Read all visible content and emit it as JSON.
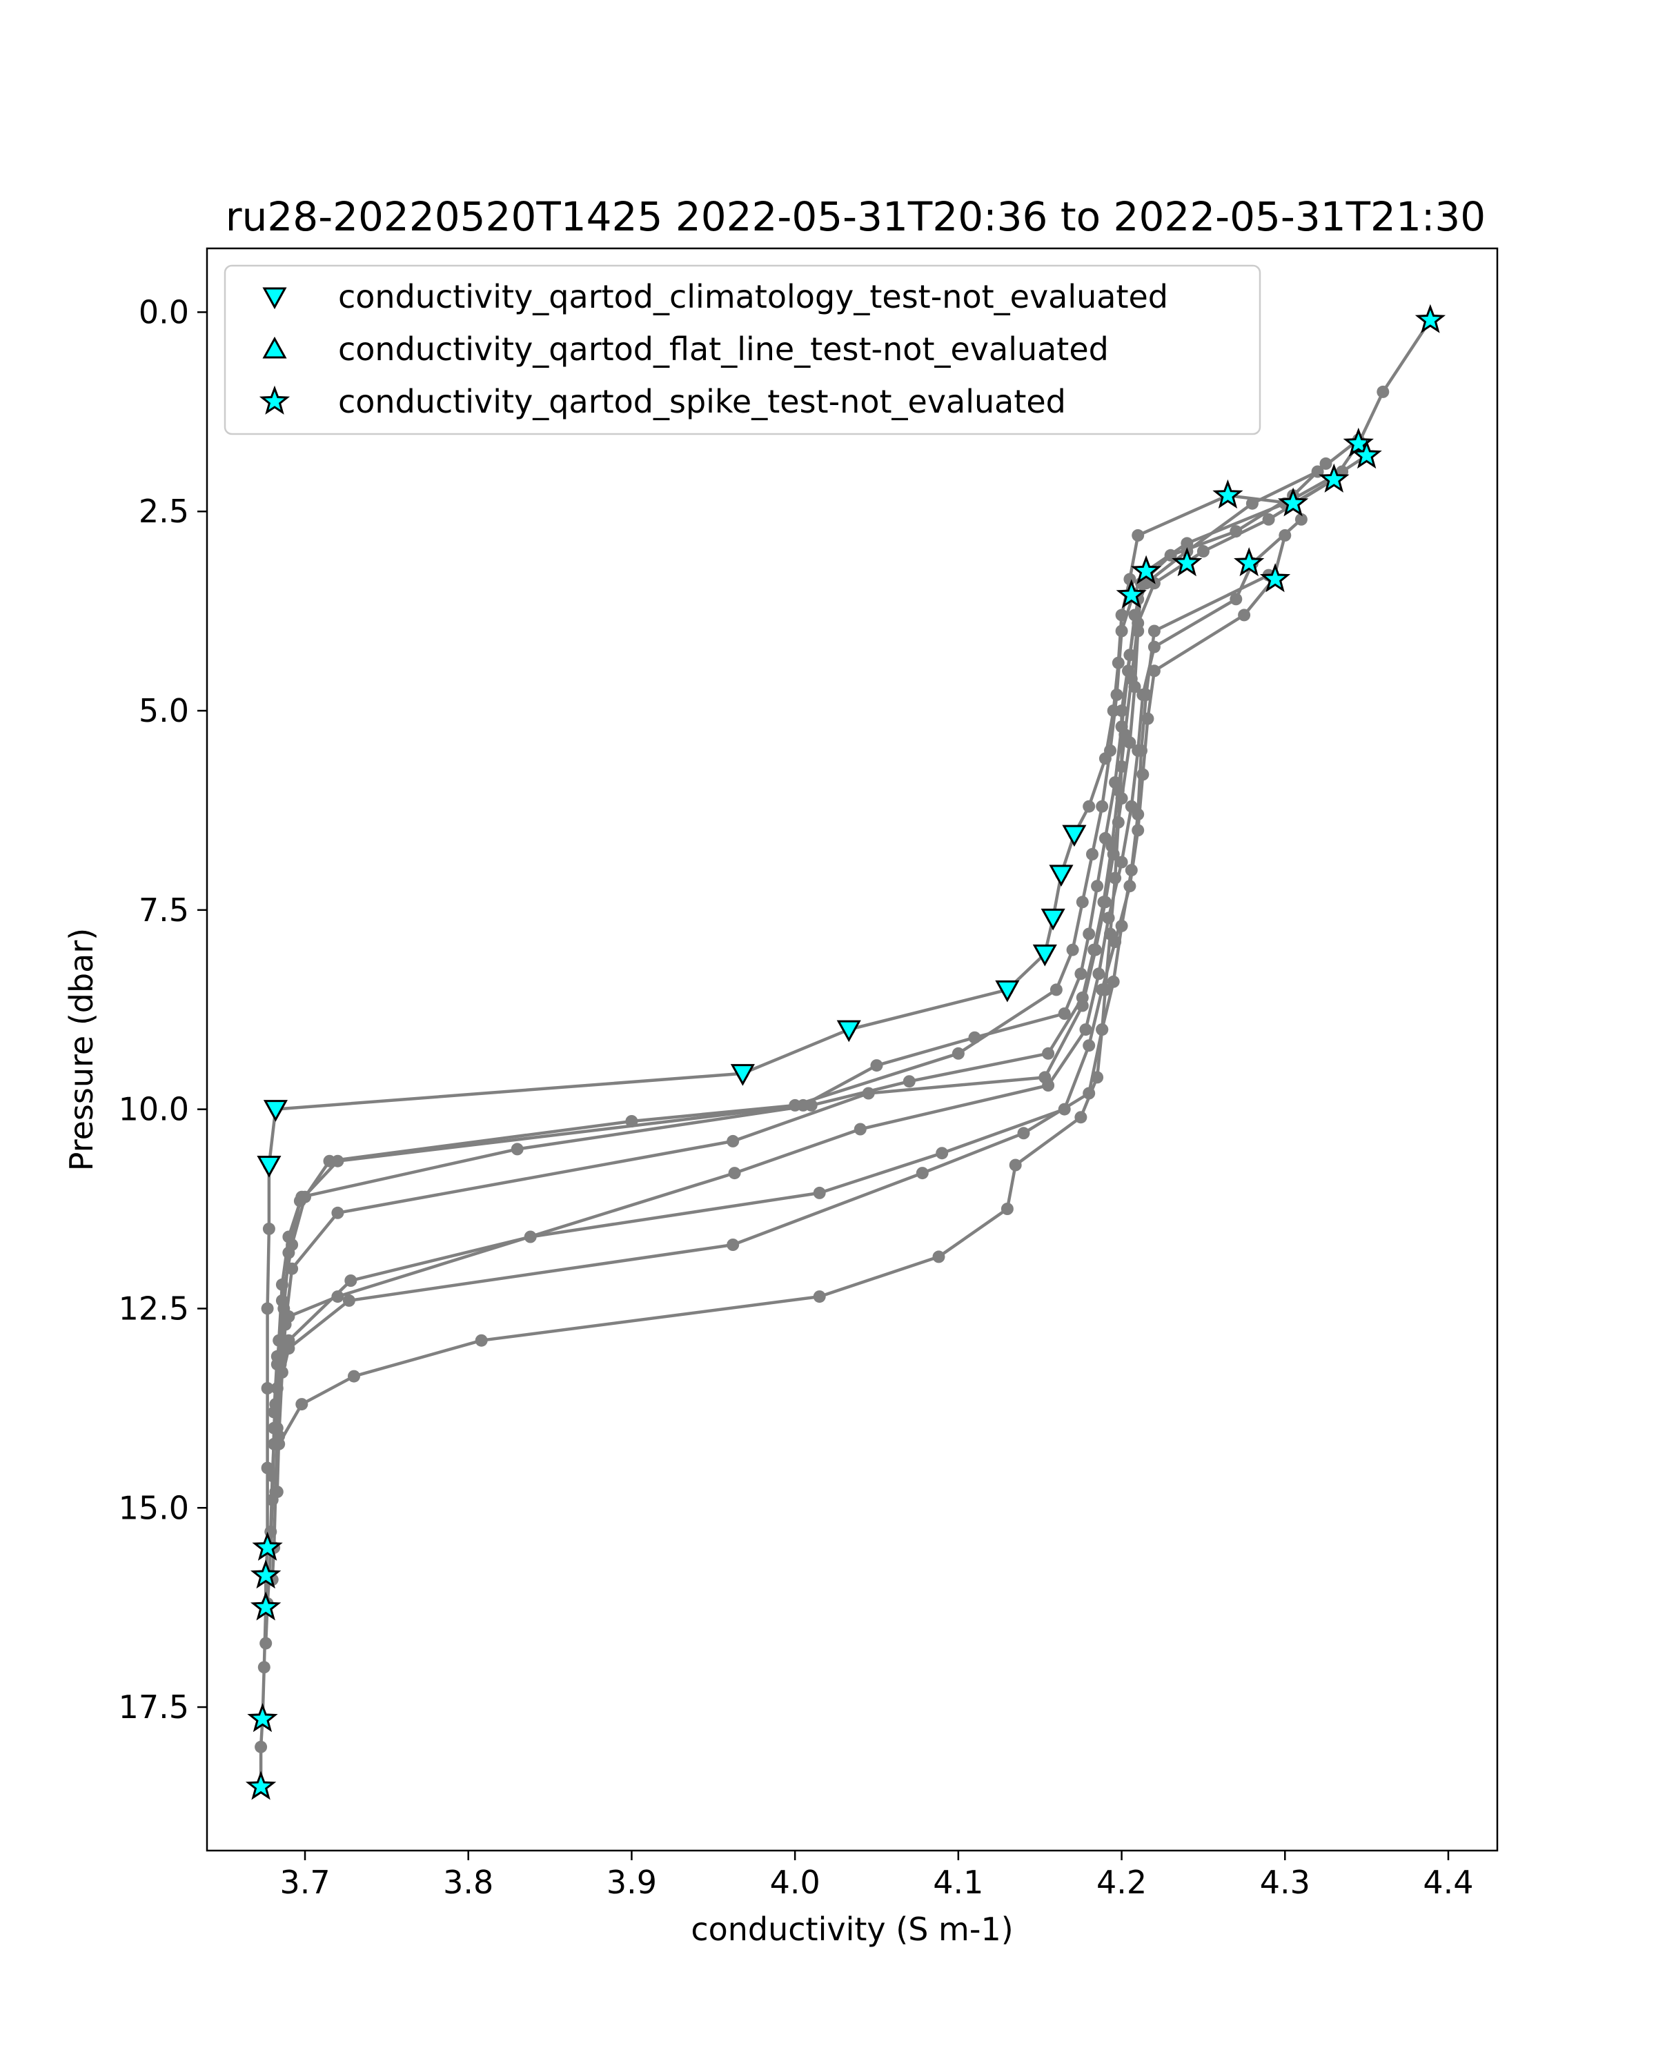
{
  "chart_data": {
    "type": "scatter",
    "title": "ru28-20220520T1425 2022-05-31T20:36 to 2022-05-31T21:30",
    "xlabel": "conductivity (S m-1)",
    "ylabel": "Pressure (dbar)",
    "xlim": [
      3.64,
      4.43
    ],
    "ylim": [
      19.3,
      -0.8
    ],
    "y_inverted": true,
    "x_ticks": [
      3.7,
      3.8,
      3.9,
      4.0,
      4.1,
      4.2,
      4.3,
      4.4
    ],
    "x_tick_labels": [
      "3.7",
      "3.8",
      "3.9",
      "4.0",
      "4.1",
      "4.2",
      "4.3",
      "4.4"
    ],
    "y_ticks": [
      0.0,
      2.5,
      5.0,
      7.5,
      10.0,
      12.5,
      15.0,
      17.5
    ],
    "y_tick_labels": [
      "0.0",
      "2.5",
      "5.0",
      "7.5",
      "10.0",
      "12.5",
      "15.0",
      "17.5"
    ],
    "grid": false,
    "legend_position": "top-left",
    "colors": {
      "profile": "#808080",
      "flag_fill": "#00ffff",
      "flag_edge": "#000000"
    },
    "legend": [
      {
        "label": "conductivity_qartod_climatology_test-not_evaluated",
        "marker": "triangle-down"
      },
      {
        "label": "conductivity_qartod_flat_line_test-not_evaluated",
        "marker": "triangle-up"
      },
      {
        "label": "conductivity_qartod_spike_test-not_evaluated",
        "marker": "star"
      }
    ],
    "profiles": [
      {
        "points": [
          [
            4.389,
            0.1
          ],
          [
            4.36,
            1.0
          ],
          [
            4.345,
            1.65
          ],
          [
            4.33,
            2.1
          ],
          [
            4.305,
            2.4
          ],
          [
            4.265,
            2.3
          ],
          [
            4.21,
            2.8
          ],
          [
            4.205,
            3.35
          ],
          [
            4.2,
            3.8
          ],
          [
            4.198,
            4.4
          ],
          [
            4.195,
            5.0
          ],
          [
            4.19,
            5.6
          ],
          [
            4.18,
            6.2
          ],
          [
            4.171,
            6.55
          ],
          [
            4.163,
            7.05
          ],
          [
            4.158,
            7.6
          ],
          [
            4.153,
            8.05
          ],
          [
            4.13,
            8.5
          ],
          [
            4.033,
            9.0
          ],
          [
            3.968,
            9.55
          ],
          [
            3.682,
            10.0
          ],
          [
            3.678,
            10.7
          ],
          [
            3.678,
            11.5
          ],
          [
            3.677,
            12.5
          ],
          [
            3.677,
            13.5
          ],
          [
            3.677,
            14.5
          ],
          [
            3.677,
            15.5
          ],
          [
            3.676,
            15.85
          ],
          [
            3.676,
            16.25
          ],
          [
            3.675,
            17.0
          ],
          [
            3.674,
            17.65
          ],
          [
            3.673,
            18.0
          ],
          [
            3.673,
            18.5
          ]
        ]
      },
      {
        "points": [
          [
            4.35,
            1.8
          ],
          [
            4.335,
            2.0
          ],
          [
            4.3,
            2.4
          ],
          [
            4.24,
            2.9
          ],
          [
            4.215,
            3.25
          ],
          [
            4.207,
            3.55
          ],
          [
            4.2,
            4.0
          ],
          [
            4.197,
            4.8
          ],
          [
            4.193,
            5.5
          ],
          [
            4.188,
            6.2
          ],
          [
            4.182,
            6.8
          ],
          [
            4.176,
            7.4
          ],
          [
            4.17,
            8.0
          ],
          [
            4.16,
            8.5
          ],
          [
            4.1,
            9.3
          ],
          [
            4.0,
            9.95
          ],
          [
            3.9,
            10.15
          ],
          [
            3.715,
            10.65
          ],
          [
            3.7,
            11.1
          ],
          [
            3.692,
            11.7
          ],
          [
            3.686,
            12.4
          ],
          [
            3.683,
            13.2
          ],
          [
            3.681,
            14.0
          ],
          [
            3.68,
            14.9
          ],
          [
            3.679,
            15.5
          ],
          [
            3.678,
            15.9
          ],
          [
            3.677,
            16.2
          ],
          [
            3.676,
            16.7
          ]
        ]
      },
      {
        "points": [
          [
            4.345,
            1.6
          ],
          [
            4.32,
            2.0
          ],
          [
            4.28,
            2.4
          ],
          [
            4.24,
            3.0
          ],
          [
            4.215,
            3.4
          ],
          [
            4.208,
            3.8
          ],
          [
            4.204,
            4.5
          ],
          [
            4.2,
            5.2
          ],
          [
            4.196,
            5.9
          ],
          [
            4.19,
            6.6
          ],
          [
            4.185,
            7.2
          ],
          [
            4.18,
            7.8
          ],
          [
            4.175,
            8.3
          ],
          [
            4.165,
            8.8
          ],
          [
            4.11,
            9.1
          ],
          [
            4.05,
            9.45
          ],
          [
            4.005,
            9.95
          ],
          [
            3.72,
            10.65
          ],
          [
            3.697,
            11.15
          ],
          [
            3.69,
            11.8
          ],
          [
            3.687,
            12.5
          ],
          [
            3.685,
            13.2
          ],
          [
            3.683,
            14.0
          ],
          [
            3.682,
            14.8
          ],
          [
            3.681,
            15.5
          ],
          [
            3.68,
            15.9
          ]
        ]
      },
      {
        "points": [
          [
            4.33,
            2.1
          ],
          [
            4.29,
            2.6
          ],
          [
            4.25,
            3.0
          ],
          [
            4.22,
            3.4
          ],
          [
            4.21,
            3.9
          ],
          [
            4.206,
            4.6
          ],
          [
            4.202,
            5.3
          ],
          [
            4.198,
            6.0
          ],
          [
            4.194,
            6.7
          ],
          [
            4.189,
            7.4
          ],
          [
            4.183,
            8.0
          ],
          [
            4.176,
            8.6
          ],
          [
            4.155,
            9.3
          ],
          [
            4.07,
            9.65
          ],
          [
            4.01,
            9.95
          ],
          [
            3.83,
            10.5
          ],
          [
            3.698,
            11.1
          ],
          [
            3.69,
            11.6
          ],
          [
            3.686,
            12.2
          ],
          [
            3.684,
            12.9
          ],
          [
            3.682,
            13.7
          ],
          [
            3.68,
            14.6
          ],
          [
            3.679,
            15.3
          ]
        ]
      },
      {
        "points": [
          [
            4.325,
            1.9
          ],
          [
            4.305,
            2.3
          ],
          [
            4.27,
            2.75
          ],
          [
            4.23,
            3.05
          ],
          [
            4.212,
            3.4
          ],
          [
            4.21,
            4.0
          ],
          [
            4.208,
            4.7
          ],
          [
            4.205,
            5.4
          ],
          [
            4.2,
            6.1
          ],
          [
            4.195,
            6.8
          ],
          [
            4.19,
            7.4
          ],
          [
            4.184,
            8.0
          ],
          [
            4.176,
            8.7
          ],
          [
            4.153,
            9.6
          ],
          [
            4.045,
            9.8
          ],
          [
            3.962,
            10.4
          ],
          [
            3.72,
            11.3
          ],
          [
            3.692,
            12.0
          ],
          [
            3.688,
            12.7
          ],
          [
            3.686,
            13.3
          ],
          [
            3.684,
            14.1
          ],
          [
            3.683,
            14.8
          ]
        ]
      },
      {
        "points": [
          [
            4.31,
            2.6
          ],
          [
            4.28,
            3.15
          ],
          [
            4.27,
            3.6
          ],
          [
            4.22,
            4.2
          ],
          [
            4.213,
            4.8
          ],
          [
            4.21,
            5.5
          ],
          [
            4.206,
            6.2
          ],
          [
            4.2,
            6.9
          ],
          [
            4.192,
            7.6
          ],
          [
            4.186,
            8.3
          ],
          [
            4.178,
            9.0
          ],
          [
            4.155,
            9.7
          ],
          [
            4.04,
            10.25
          ],
          [
            3.963,
            10.8
          ],
          [
            3.72,
            12.35
          ],
          [
            3.69,
            12.6
          ],
          [
            3.683,
            13.1
          ],
          [
            3.681,
            13.8
          ]
        ]
      },
      {
        "points": [
          [
            4.3,
            2.8
          ],
          [
            4.293,
            3.35
          ],
          [
            4.275,
            3.8
          ],
          [
            4.22,
            4.5
          ],
          [
            4.216,
            5.1
          ],
          [
            4.213,
            5.8
          ],
          [
            4.21,
            6.5
          ],
          [
            4.205,
            7.2
          ],
          [
            4.196,
            7.9
          ],
          [
            4.188,
            8.5
          ],
          [
            4.18,
            9.2
          ],
          [
            4.165,
            10.0
          ],
          [
            4.09,
            10.55
          ],
          [
            4.015,
            11.05
          ],
          [
            3.838,
            11.6
          ],
          [
            3.728,
            12.15
          ],
          [
            3.69,
            12.9
          ],
          [
            3.683,
            13.5
          ],
          [
            3.681,
            14.2
          ]
        ]
      },
      {
        "points": [
          [
            4.29,
            3.3
          ],
          [
            4.22,
            4.0
          ],
          [
            4.215,
            4.8
          ],
          [
            4.212,
            5.5
          ],
          [
            4.21,
            6.3
          ],
          [
            4.206,
            7.0
          ],
          [
            4.2,
            7.7
          ],
          [
            4.195,
            8.4
          ],
          [
            4.188,
            9.0
          ],
          [
            4.18,
            9.8
          ],
          [
            4.14,
            10.3
          ],
          [
            4.078,
            10.8
          ],
          [
            3.962,
            11.7
          ],
          [
            3.727,
            12.4
          ],
          [
            3.69,
            13.0
          ],
          [
            3.682,
            13.7
          ]
        ]
      },
      {
        "points": [
          [
            4.21,
            3.6
          ],
          [
            4.205,
            4.3
          ],
          [
            4.2,
            5.0
          ],
          [
            4.2,
            5.7
          ],
          [
            4.198,
            6.4
          ],
          [
            4.196,
            7.1
          ],
          [
            4.193,
            7.8
          ],
          [
            4.19,
            8.5
          ],
          [
            4.188,
            9.0
          ],
          [
            4.185,
            9.6
          ],
          [
            4.175,
            10.1
          ],
          [
            4.135,
            10.7
          ],
          [
            4.13,
            11.25
          ],
          [
            4.088,
            11.85
          ],
          [
            4.015,
            12.35
          ],
          [
            3.808,
            12.9
          ],
          [
            3.73,
            13.35
          ],
          [
            3.698,
            13.7
          ],
          [
            3.684,
            14.2
          ]
        ]
      }
    ],
    "flags": {
      "climatology": [
        [
          4.171,
          6.55
        ],
        [
          4.163,
          7.05
        ],
        [
          4.158,
          7.6
        ],
        [
          4.153,
          8.05
        ],
        [
          4.13,
          8.5
        ],
        [
          4.033,
          9.0
        ],
        [
          3.968,
          9.55
        ],
        [
          3.682,
          10.0
        ],
        [
          3.678,
          10.7
        ]
      ],
      "flat_line": [],
      "spike": [
        [
          4.389,
          0.1
        ],
        [
          4.345,
          1.65
        ],
        [
          4.35,
          1.8
        ],
        [
          4.33,
          2.1
        ],
        [
          4.305,
          2.4
        ],
        [
          4.265,
          2.3
        ],
        [
          4.24,
          3.15
        ],
        [
          4.278,
          3.15
        ],
        [
          4.294,
          3.35
        ],
        [
          4.215,
          3.25
        ],
        [
          4.206,
          3.55
        ],
        [
          3.677,
          15.5
        ],
        [
          3.676,
          15.85
        ],
        [
          3.676,
          16.25
        ],
        [
          3.674,
          17.65
        ],
        [
          3.673,
          18.5
        ]
      ]
    }
  }
}
